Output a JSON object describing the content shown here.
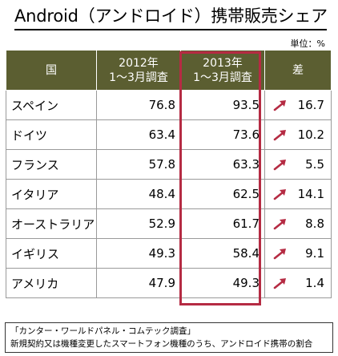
{
  "title": "Android（アンドロイド）携帯販売シェア",
  "unit_label": "単位：%",
  "chart_data": {
    "type": "table",
    "columns": [
      "国",
      "2012年\n1～3月調査",
      "2013年\n1～3月調査",
      "差"
    ],
    "rows": [
      {
        "country": "スペイン",
        "y2012": "76.8",
        "y2013": "93.5",
        "diff": "16.7"
      },
      {
        "country": "ドイツ",
        "y2012": "63.4",
        "y2013": "73.6",
        "diff": "10.2"
      },
      {
        "country": "フランス",
        "y2012": "57.8",
        "y2013": "63.3",
        "diff": "5.5"
      },
      {
        "country": "イタリア",
        "y2012": "48.4",
        "y2013": "62.5",
        "diff": "14.1"
      },
      {
        "country": "オーストラリア",
        "y2012": "52.9",
        "y2013": "61.7",
        "diff": "8.8"
      },
      {
        "country": "イギリス",
        "y2012": "49.3",
        "y2013": "58.4",
        "diff": "9.1"
      },
      {
        "country": "アメリカ",
        "y2012": "47.9",
        "y2013": "49.3",
        "diff": "1.4"
      }
    ]
  },
  "colors": {
    "header_bg": "#5b5e31",
    "highlight_border": "#b52b43",
    "arrow": "#b52b43"
  },
  "diff_icon": "up-right-arrow-icon",
  "note": {
    "line1": "「カンター・ワールドパネル・コムテック調査」",
    "line2": "新規契約又は機種変更したスマートフォン機種のうち、アンドロイド携帯の割合"
  }
}
